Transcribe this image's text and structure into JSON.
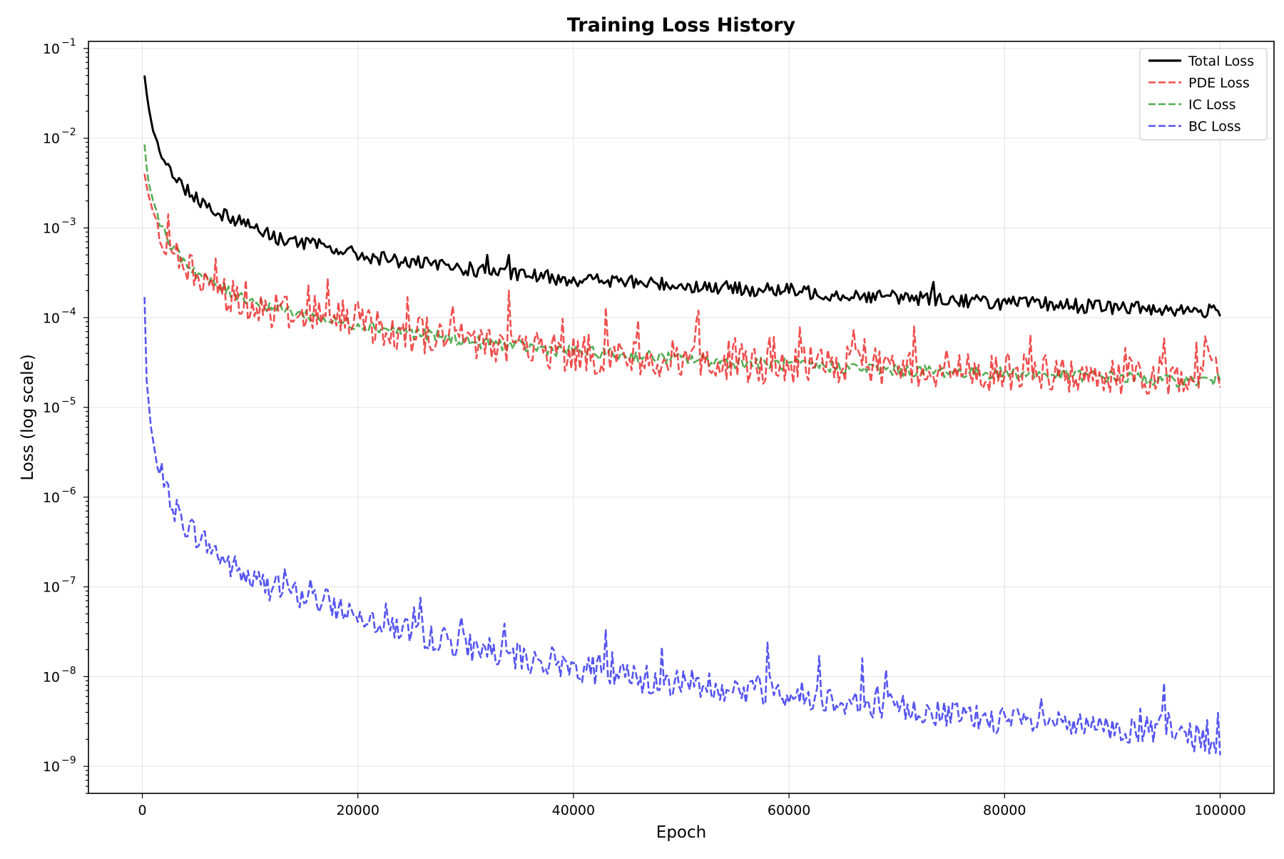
{
  "chart_data": {
    "type": "line",
    "title": "Training Loss History",
    "xlabel": "Epoch",
    "ylabel": "Loss (log scale)",
    "xlim": [
      -5000,
      105000
    ],
    "ylim": [
      5e-10,
      0.12
    ],
    "y_scale": "log",
    "grid": true,
    "legend_position": "top-right",
    "x_ticks": [
      0,
      20000,
      40000,
      60000,
      80000,
      100000
    ],
    "x_tick_labels": [
      "0",
      "20000",
      "40000",
      "60000",
      "80000",
      "100000"
    ],
    "y_tick_exponents": [
      -1,
      -2,
      -3,
      -4,
      -5,
      -6,
      -7,
      -8,
      -9
    ],
    "y_tick_base": "10",
    "series": [
      {
        "name": "Total Loss",
        "color": "#000000",
        "style": "solid",
        "x": [
          200,
          500,
          1000,
          2000,
          3000,
          5000,
          7000,
          10000,
          12000,
          15000,
          18000,
          20000,
          25000,
          30000,
          35000,
          40000,
          45000,
          50000,
          55000,
          60000,
          65000,
          70000,
          75000,
          80000,
          85000,
          90000,
          95000,
          100000
        ],
        "y": [
          0.05,
          0.025,
          0.012,
          0.006,
          0.0035,
          0.0022,
          0.0015,
          0.0011,
          0.0008,
          0.00068,
          0.00058,
          0.0005,
          0.00041,
          0.00035,
          0.0003,
          0.00027,
          0.00025,
          0.00023,
          0.00021,
          0.0002,
          0.00018,
          0.00017,
          0.00016,
          0.000145,
          0.00014,
          0.00013,
          0.000125,
          0.000115
        ],
        "spikes": [
          [
            10600,
            0.0011
          ],
          [
            14300,
            0.00085
          ],
          [
            17900,
            0.0008
          ],
          [
            21700,
            0.0007
          ],
          [
            32000,
            0.0005
          ],
          [
            34000,
            0.0005
          ],
          [
            63300,
            0.00032
          ],
          [
            73400,
            0.00025
          ]
        ]
      },
      {
        "name": "PDE Loss",
        "color": "#ee2222",
        "style": "dashed",
        "x": [
          200,
          500,
          1000,
          2000,
          3000,
          5000,
          7000,
          10000,
          12000,
          15000,
          18000,
          20000,
          25000,
          30000,
          35000,
          40000,
          45000,
          50000,
          55000,
          60000,
          65000,
          70000,
          75000,
          80000,
          85000,
          90000,
          95000,
          100000
        ],
        "y": [
          0.004,
          0.0025,
          0.0015,
          0.0008,
          0.0005,
          0.0003,
          0.0002,
          0.00015,
          0.000125,
          0.00011,
          0.0001,
          9e-05,
          6.8e-05,
          5.5e-05,
          4.7e-05,
          4e-05,
          3.7e-05,
          3.4e-05,
          3.1e-05,
          3e-05,
          2.9e-05,
          2.7e-05,
          2.6e-05,
          2.5e-05,
          2.4e-05,
          2.3e-05,
          2.2e-05,
          2.5e-05
        ],
        "spikes": [
          [
            10300,
            0.00045
          ],
          [
            15400,
            0.00023
          ],
          [
            17900,
            0.00036
          ],
          [
            21700,
            0.00029
          ],
          [
            24600,
            0.00017
          ],
          [
            34000,
            0.0002
          ],
          [
            43000,
            0.00013
          ],
          [
            51600,
            0.00012
          ],
          [
            63300,
            0.00016
          ],
          [
            86500,
            6e-05
          ],
          [
            98800,
            5e-05
          ]
        ]
      },
      {
        "name": "IC Loss",
        "color": "#2a9a2a",
        "style": "dashed",
        "x": [
          200,
          500,
          1000,
          2000,
          3000,
          5000,
          7000,
          10000,
          12000,
          15000,
          18000,
          20000,
          25000,
          30000,
          35000,
          40000,
          45000,
          50000,
          55000,
          60000,
          65000,
          70000,
          75000,
          80000,
          85000,
          90000,
          95000,
          100000
        ],
        "y": [
          0.0085,
          0.0035,
          0.002,
          0.0009,
          0.00055,
          0.00032,
          0.00022,
          0.00016,
          0.00013,
          0.00011,
          9e-05,
          8.5e-05,
          6.8e-05,
          5.5e-05,
          4.8e-05,
          4.2e-05,
          3.8e-05,
          3.5e-05,
          3.2e-05,
          3e-05,
          2.8e-05,
          2.6e-05,
          2.5e-05,
          2.4e-05,
          2.3e-05,
          2.2e-05,
          2e-05,
          2e-05
        ],
        "spikes": []
      },
      {
        "name": "BC Loss",
        "color": "#2a2aee",
        "style": "dashed",
        "x": [
          200,
          400,
          800,
          1500,
          2500,
          4000,
          6000,
          8000,
          10000,
          12000,
          15000,
          18000,
          20000,
          25000,
          30000,
          35000,
          40000,
          45000,
          50000,
          55000,
          60000,
          65000,
          70000,
          75000,
          80000,
          85000,
          90000,
          95000,
          100000
        ],
        "y": [
          0.00017,
          2e-05,
          6e-06,
          1.8e-06,
          9e-07,
          5e-07,
          3e-07,
          1.8e-07,
          1.2e-07,
          1e-07,
          8e-08,
          6e-08,
          5e-08,
          3.2e-08,
          2.2e-08,
          1.6e-08,
          1.3e-08,
          1e-08,
          8.5e-09,
          7.5e-09,
          6.5e-09,
          5.5e-09,
          4.5e-09,
          3.8e-09,
          3.2e-09,
          2.8e-09,
          2.6e-09,
          2.4e-09,
          1.8e-09
        ],
        "spikes": [
          [
            14300,
            1.2e-07
          ],
          [
            16700,
            1.1e-07
          ],
          [
            24500,
            6.5e-08
          ],
          [
            28300,
            5.5e-08
          ],
          [
            43000,
            3.3e-08
          ],
          [
            58000,
            2.4e-08
          ],
          [
            62800,
            1.7e-08
          ],
          [
            66800,
            1.6e-08
          ],
          [
            89700,
            1.3e-08
          ],
          [
            92500,
            8.5e-09
          ],
          [
            94800,
            8.5e-09
          ],
          [
            98700,
            4.5e-09
          ]
        ]
      }
    ]
  }
}
